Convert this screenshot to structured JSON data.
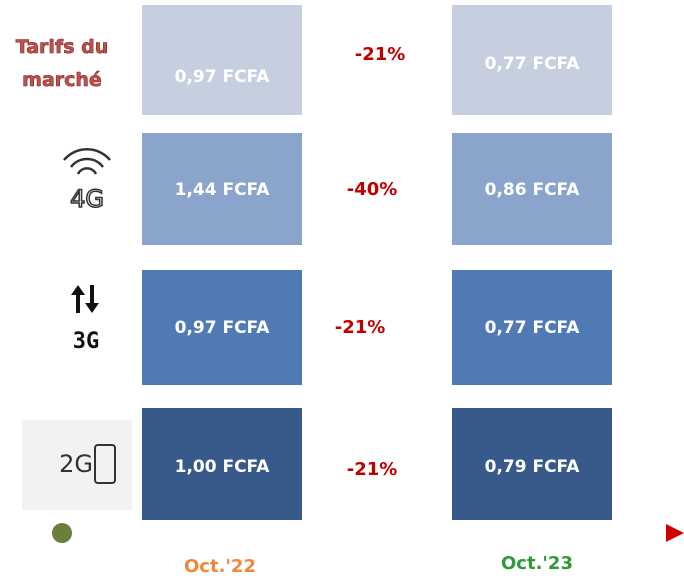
{
  "rows": [
    {
      "label": "Tarifs du marché",
      "before": "0,97 FCFA",
      "change": "-21%",
      "after": "0,77 FCFA"
    },
    {
      "label": "4G",
      "before": "1,44 FCFA",
      "change": "-40%",
      "after": "0,86 FCFA"
    },
    {
      "label": "3G",
      "before": "0,97 FCFA",
      "change": "-21%",
      "after": "0,77 FCFA"
    },
    {
      "label": "2G",
      "before": "1,00 FCFA",
      "change": "-21%",
      "after": "0,79 FCFA"
    }
  ],
  "timeline": {
    "start": "Oct.'22",
    "end": "Oct.'23"
  }
}
